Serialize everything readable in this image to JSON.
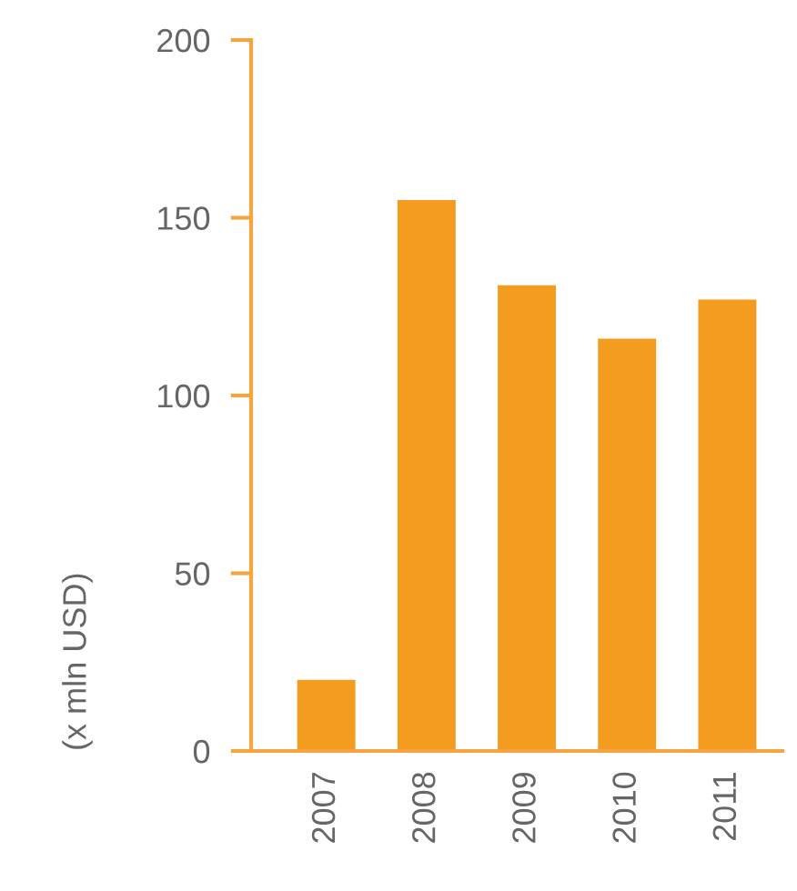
{
  "chart_data": {
    "type": "bar",
    "ylabel": "(x mln USD)",
    "categories": [
      "2007",
      "2008",
      "2009",
      "2010",
      "2011"
    ],
    "values": [
      20,
      155,
      131,
      116,
      127
    ],
    "color": "#f39c1f",
    "ylim": [
      0,
      200
    ],
    "yticks": [
      0,
      50,
      100,
      150,
      200
    ],
    "grid": false
  }
}
